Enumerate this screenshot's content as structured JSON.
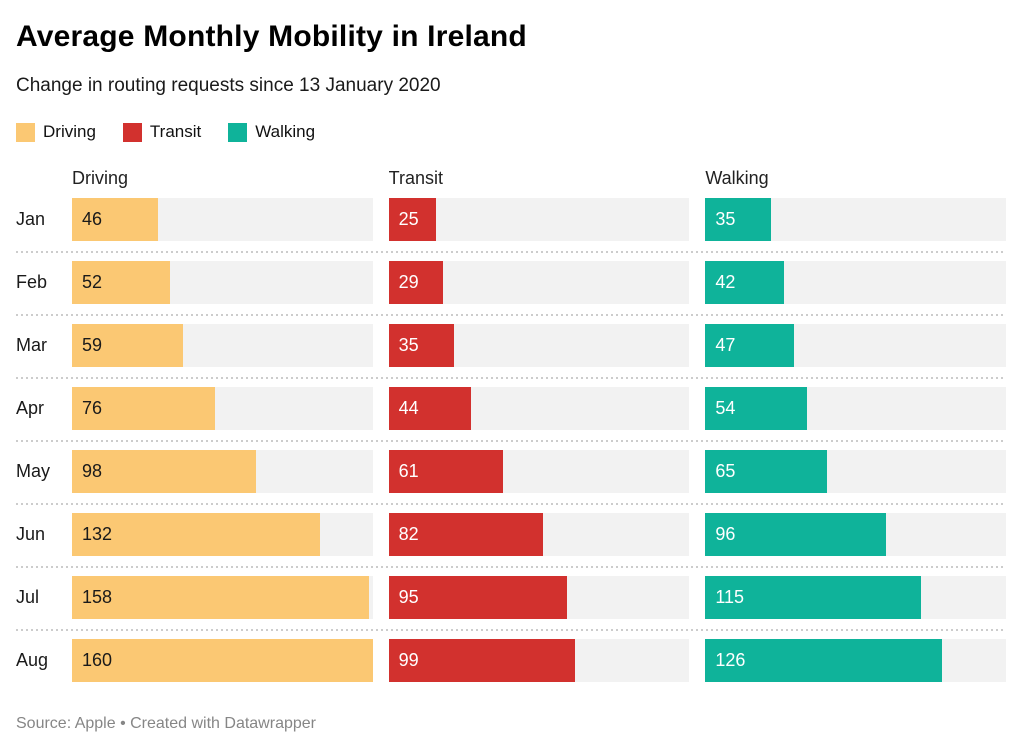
{
  "chart": {
    "title": "Average Monthly Mobility in Ireland",
    "subtitle": "Change in routing requests since 13 January 2020",
    "source": "Source: Apple • Created with Datawrapper"
  },
  "chart_data": {
    "type": "bar",
    "orientation": "horizontal",
    "title": "Average Monthly Mobility in Ireland",
    "subtitle": "Change in routing requests since 13 January 2020",
    "categories": [
      "Jan",
      "Feb",
      "Mar",
      "Apr",
      "May",
      "Jun",
      "Jul",
      "Aug"
    ],
    "series": [
      {
        "name": "Driving",
        "color": "#fbc873",
        "label_color": "#1a1a1a",
        "values": [
          46,
          52,
          59,
          76,
          98,
          132,
          158,
          160
        ]
      },
      {
        "name": "Transit",
        "color": "#d2312e",
        "label_color": "#ffffff",
        "values": [
          25,
          29,
          35,
          44,
          61,
          82,
          95,
          99
        ]
      },
      {
        "name": "Walking",
        "color": "#0fb39a",
        "label_color": "#ffffff",
        "values": [
          35,
          42,
          47,
          54,
          65,
          96,
          115,
          126
        ]
      }
    ],
    "xmax": 160,
    "track_color": "#f2f2f2",
    "grid": false,
    "legend_position": "top"
  }
}
